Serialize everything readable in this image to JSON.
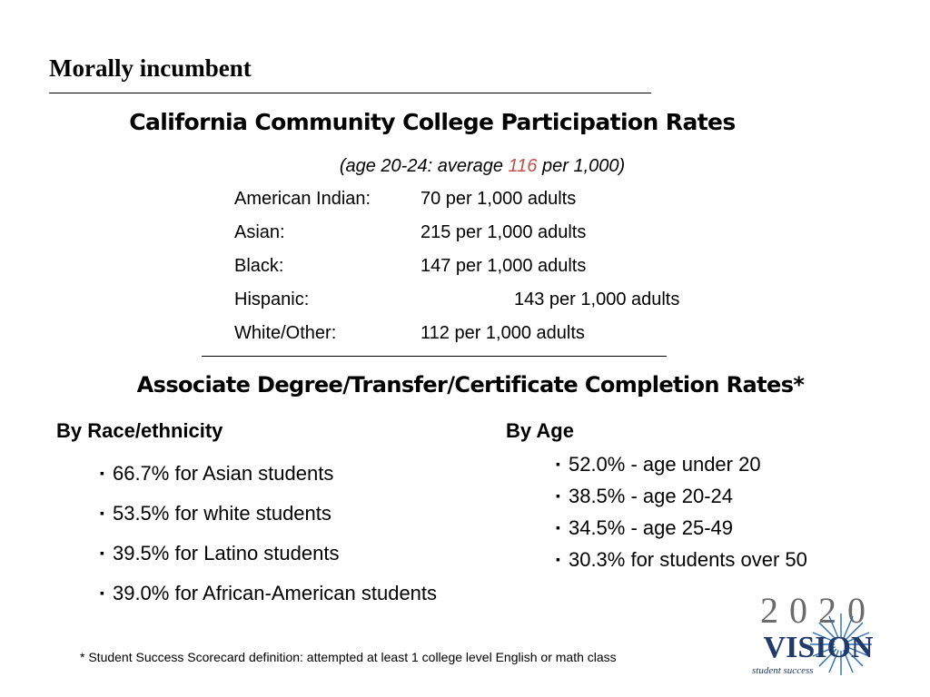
{
  "slide": {
    "title": "Morally incumbent"
  },
  "participation": {
    "heading": "California Community College Participation Rates",
    "subtitle_pre": "(age 20-24: average ",
    "subtitle_highlight": "116",
    "subtitle_post": " per 1,000)",
    "rows": [
      {
        "group": "American Indian:",
        "value": "70 per 1,000 adults"
      },
      {
        "group": "Asian:",
        "value": "215 per 1,000 adults"
      },
      {
        "group": "Black:",
        "value": "147 per 1,000 adults"
      },
      {
        "group": "Hispanic:",
        "value": "143 per 1,000 adults"
      },
      {
        "group": "White/Other:",
        "value": "112 per 1,000 adults"
      }
    ]
  },
  "completion": {
    "heading": "Associate Degree/Transfer/Certificate Completion Rates*",
    "by_race": {
      "label": "By Race/ethnicity",
      "items": [
        "66.7% for Asian students",
        "53.5% for white students",
        "39.5% for Latino students",
        "39.0% for African-American students"
      ]
    },
    "by_age": {
      "label": "By Age",
      "items": [
        "52.0% - age under 20",
        "38.5% - age 20-24",
        "34.5% - age 25-49",
        "30.3% for students over 50"
      ]
    }
  },
  "footnote": "* Student Success Scorecard definition: attempted at least 1 college level English or math class",
  "logo": {
    "year": "2020",
    "word": "VISION",
    "tagline": "student success"
  },
  "colors": {
    "highlight": "#c0504d",
    "logo_gray": "#6b6b6b",
    "logo_navy": "#1f3a6b",
    "logo_burst": "#2e6db4"
  }
}
